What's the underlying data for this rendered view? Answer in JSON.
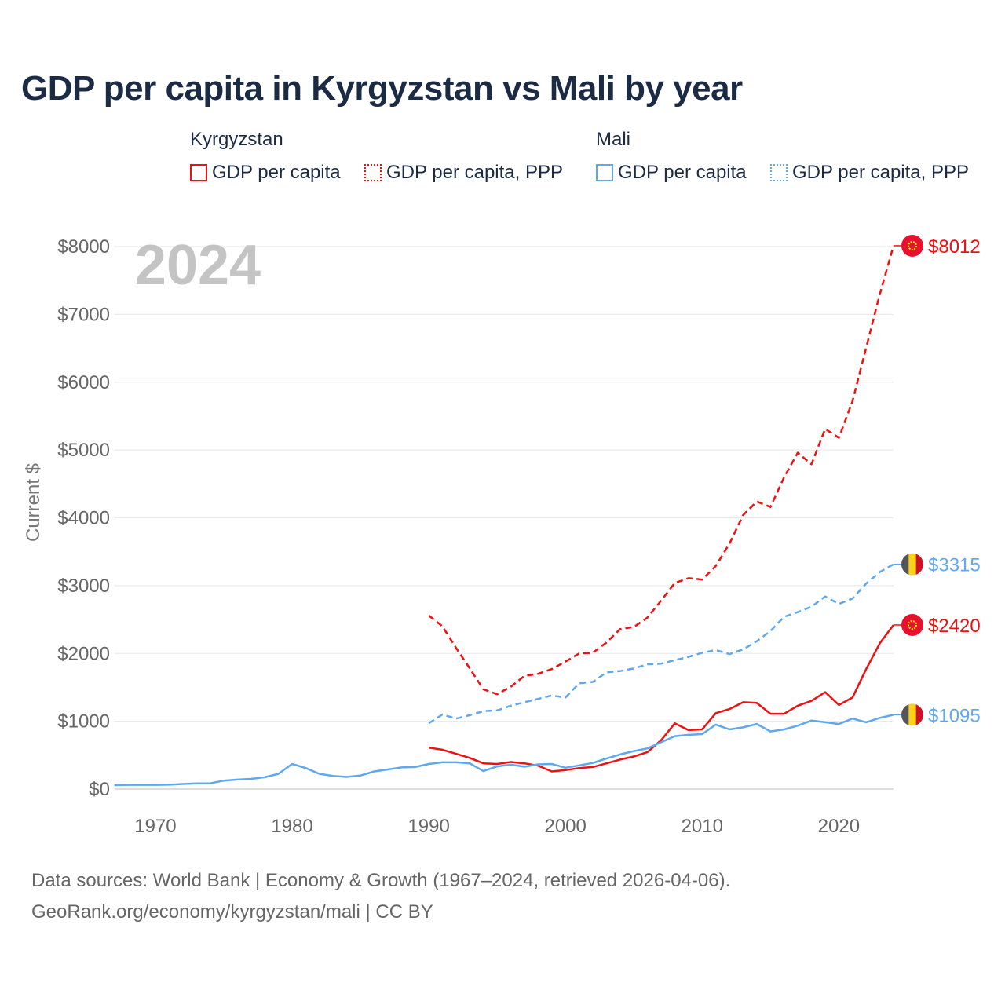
{
  "title": "GDP per capita in Kyrgyzstan vs Mali by year",
  "legend": {
    "groups": [
      {
        "country": "Kyrgyzstan",
        "color": "#ee1111",
        "items": [
          "GDP per capita",
          "GDP per capita, PPP"
        ]
      },
      {
        "country": "Mali",
        "color": "#60a8ee",
        "items": [
          "GDP per capita",
          "GDP per capita, PPP"
        ]
      }
    ]
  },
  "year_label": "2024",
  "end_labels": {
    "kgz_ppp": "$8012",
    "mli_ppp": "$3315",
    "kgz_gdp": "$2420",
    "mli_gdp": "$1095"
  },
  "source": {
    "line1": "Data sources: World Bank | Economy & Growth (1967–2024, retrieved 2026-04-06).",
    "line2": "GeoRank.org/economy/kyrgyzstan/mali | CC BY"
  },
  "chart_data": {
    "type": "line",
    "title": "GDP per capita in Kyrgyzstan vs Mali by year",
    "xlabel": "",
    "ylabel": "Current $",
    "xlim": [
      1967,
      2024
    ],
    "ylim": [
      0,
      8000
    ],
    "x_ticks": [
      1970,
      1980,
      1990,
      2000,
      2010,
      2020
    ],
    "y_ticks": [
      0,
      1000,
      2000,
      3000,
      4000,
      5000,
      6000,
      7000,
      8000
    ],
    "y_tick_labels": [
      "$0",
      "$1000",
      "$2000",
      "$3000",
      "$4000",
      "$5000",
      "$6000",
      "$7000",
      "$8000"
    ],
    "grid": true,
    "legend_position": "top",
    "series": [
      {
        "name": "Kyrgyzstan GDP per capita, PPP",
        "color": "#ee1111",
        "dash": true,
        "start": 1990,
        "values": [
          2560,
          2400,
          2080,
          1780,
          1470,
          1400,
          1510,
          1670,
          1700,
          1770,
          1880,
          2000,
          2010,
          2160,
          2360,
          2390,
          2530,
          2780,
          3040,
          3110,
          3090,
          3290,
          3620,
          4040,
          4240,
          4160,
          4600,
          4960,
          4790,
          5310,
          5180,
          5720,
          6510,
          7300,
          8012
        ]
      },
      {
        "name": "Mali GDP per capita, PPP",
        "color": "#60a8ee",
        "dash": true,
        "start": 1990,
        "values": [
          970,
          1100,
          1040,
          1090,
          1150,
          1160,
          1230,
          1280,
          1330,
          1380,
          1350,
          1560,
          1580,
          1720,
          1740,
          1780,
          1840,
          1850,
          1900,
          1950,
          2010,
          2050,
          1990,
          2060,
          2180,
          2330,
          2540,
          2610,
          2690,
          2840,
          2730,
          2810,
          3030,
          3200,
          3315
        ]
      },
      {
        "name": "Kyrgyzstan GDP per capita",
        "color": "#ee1111",
        "dash": false,
        "start": 1990,
        "values": [
          610,
          580,
          520,
          460,
          380,
          370,
          400,
          380,
          345,
          260,
          280,
          310,
          325,
          380,
          435,
          480,
          545,
          720,
          970,
          870,
          880,
          1120,
          1180,
          1280,
          1270,
          1110,
          1110,
          1230,
          1300,
          1430,
          1240,
          1350,
          1770,
          2150,
          2420
        ]
      },
      {
        "name": "Mali GDP per capita",
        "color": "#60a8ee",
        "dash": false,
        "start": 1967,
        "values": [
          58,
          62,
          62,
          63,
          65,
          75,
          85,
          85,
          125,
          140,
          150,
          175,
          225,
          370,
          310,
          225,
          195,
          180,
          200,
          260,
          290,
          320,
          325,
          370,
          395,
          395,
          380,
          265,
          335,
          360,
          330,
          365,
          370,
          315,
          350,
          385,
          450,
          510,
          560,
          600,
          690,
          780,
          800,
          810,
          950,
          880,
          910,
          960,
          850,
          880,
          935,
          1010,
          985,
          960,
          1040,
          985,
          1050,
          1095
        ]
      }
    ]
  }
}
